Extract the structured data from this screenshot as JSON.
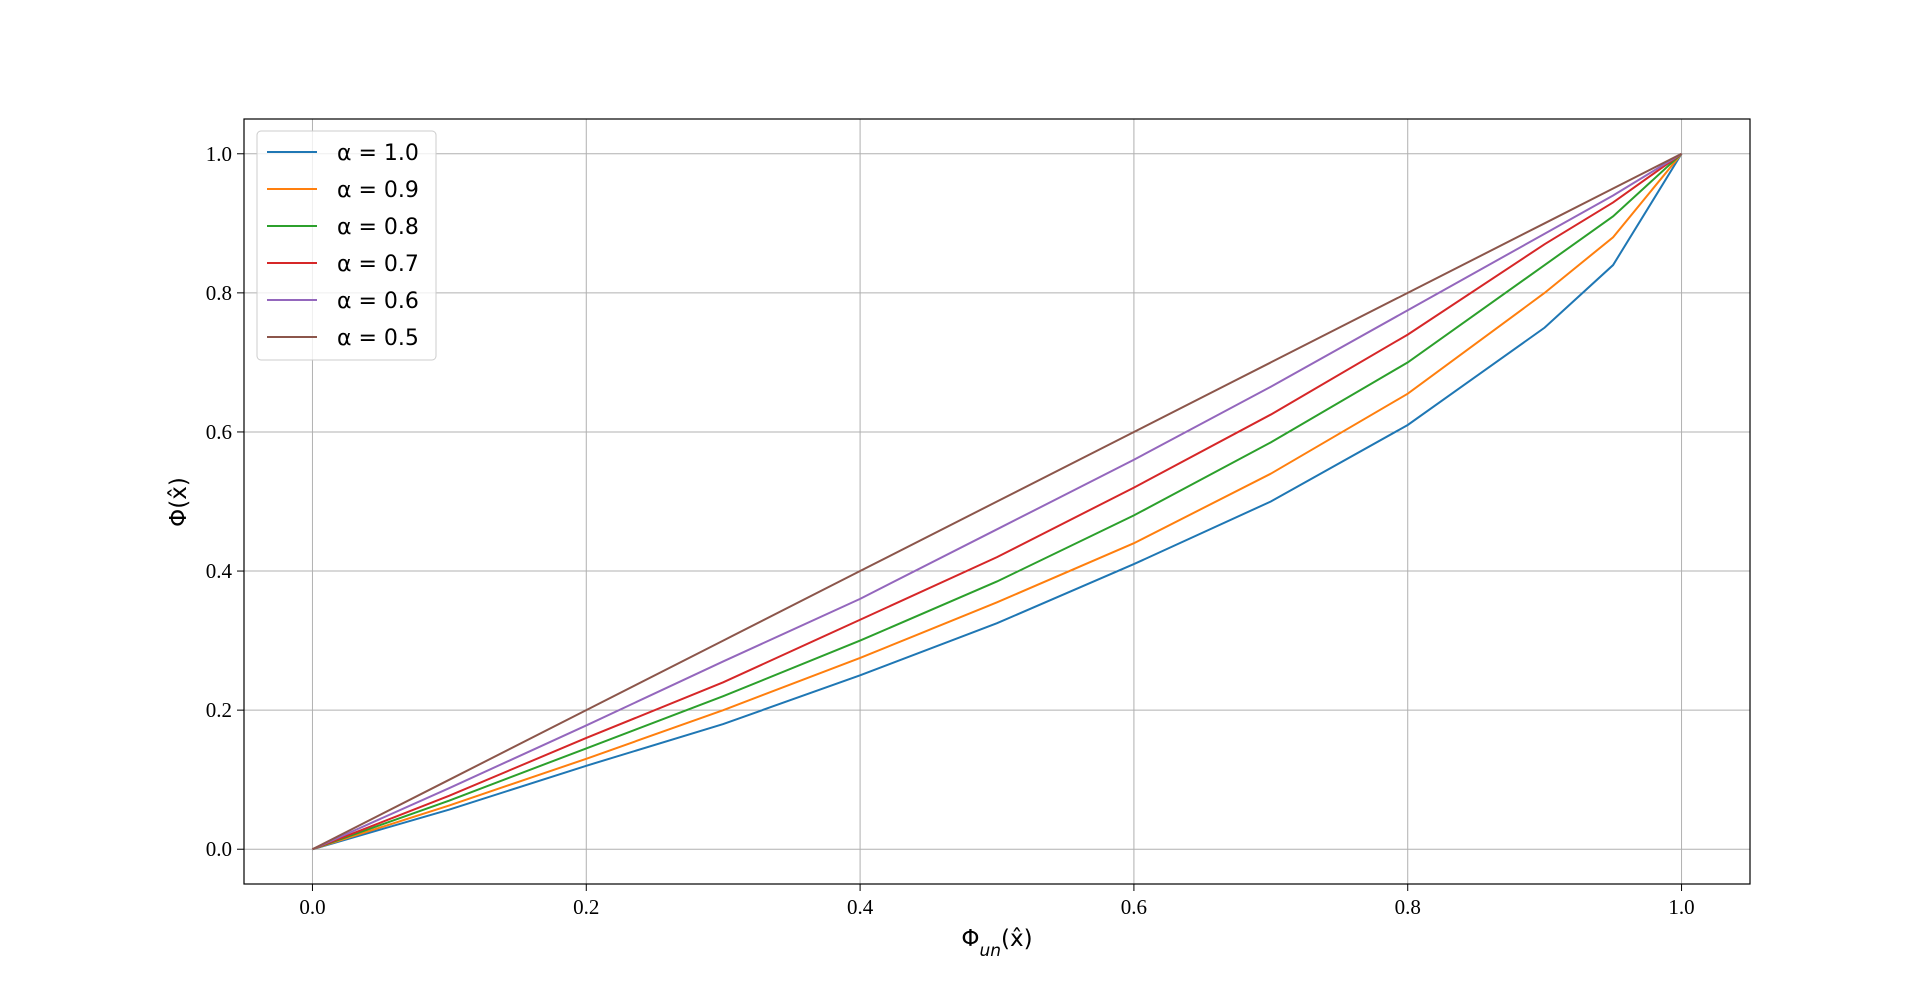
{
  "chart_data": {
    "type": "line",
    "x_label": "Φun(x̂)",
    "y_label": "Φ(x̂)",
    "x": [
      0,
      0.1,
      0.2,
      0.3,
      0.4,
      0.5,
      0.6,
      0.7,
      0.8,
      0.9,
      0.95,
      1.0
    ],
    "series": [
      {
        "name": "α = 1.0",
        "color": "#1f77b4",
        "values": [
          0,
          0.057,
          0.12,
          0.18,
          0.25,
          0.325,
          0.41,
          0.5,
          0.61,
          0.75,
          0.84,
          1.0
        ]
      },
      {
        "name": "α = 0.9",
        "color": "#ff7f0e",
        "values": [
          0,
          0.063,
          0.13,
          0.2,
          0.275,
          0.355,
          0.44,
          0.54,
          0.655,
          0.8,
          0.88,
          1.0
        ]
      },
      {
        "name": "α = 0.8",
        "color": "#2ca02c",
        "values": [
          0,
          0.07,
          0.145,
          0.22,
          0.3,
          0.385,
          0.48,
          0.585,
          0.7,
          0.84,
          0.91,
          1.0
        ]
      },
      {
        "name": "α = 0.7",
        "color": "#d62728",
        "values": [
          0,
          0.077,
          0.16,
          0.24,
          0.33,
          0.42,
          0.52,
          0.625,
          0.74,
          0.87,
          0.93,
          1.0
        ]
      },
      {
        "name": "α = 0.6",
        "color": "#9467bd",
        "values": [
          0,
          0.088,
          0.178,
          0.27,
          0.36,
          0.46,
          0.56,
          0.665,
          0.775,
          0.885,
          0.94,
          1.0
        ]
      },
      {
        "name": "α = 0.5",
        "color": "#8c564b",
        "values": [
          0,
          0.1,
          0.2,
          0.3,
          0.4,
          0.5,
          0.6,
          0.7,
          0.8,
          0.9,
          0.95,
          1.0
        ]
      }
    ],
    "xlim": [
      -0.05,
      1.05
    ],
    "ylim": [
      -0.05,
      1.05
    ],
    "xticks": [
      {
        "value": 0,
        "label": "0.0"
      },
      0.2,
      0.4,
      0.6,
      0.8,
      {
        "value": 1,
        "label": "1.0"
      }
    ],
    "yticks": [
      {
        "value": 0,
        "label": "0.0"
      },
      0.2,
      0.4,
      0.6,
      0.8,
      {
        "value": 1,
        "label": "1.0"
      }
    ],
    "grid": true,
    "legend": "upper left"
  }
}
